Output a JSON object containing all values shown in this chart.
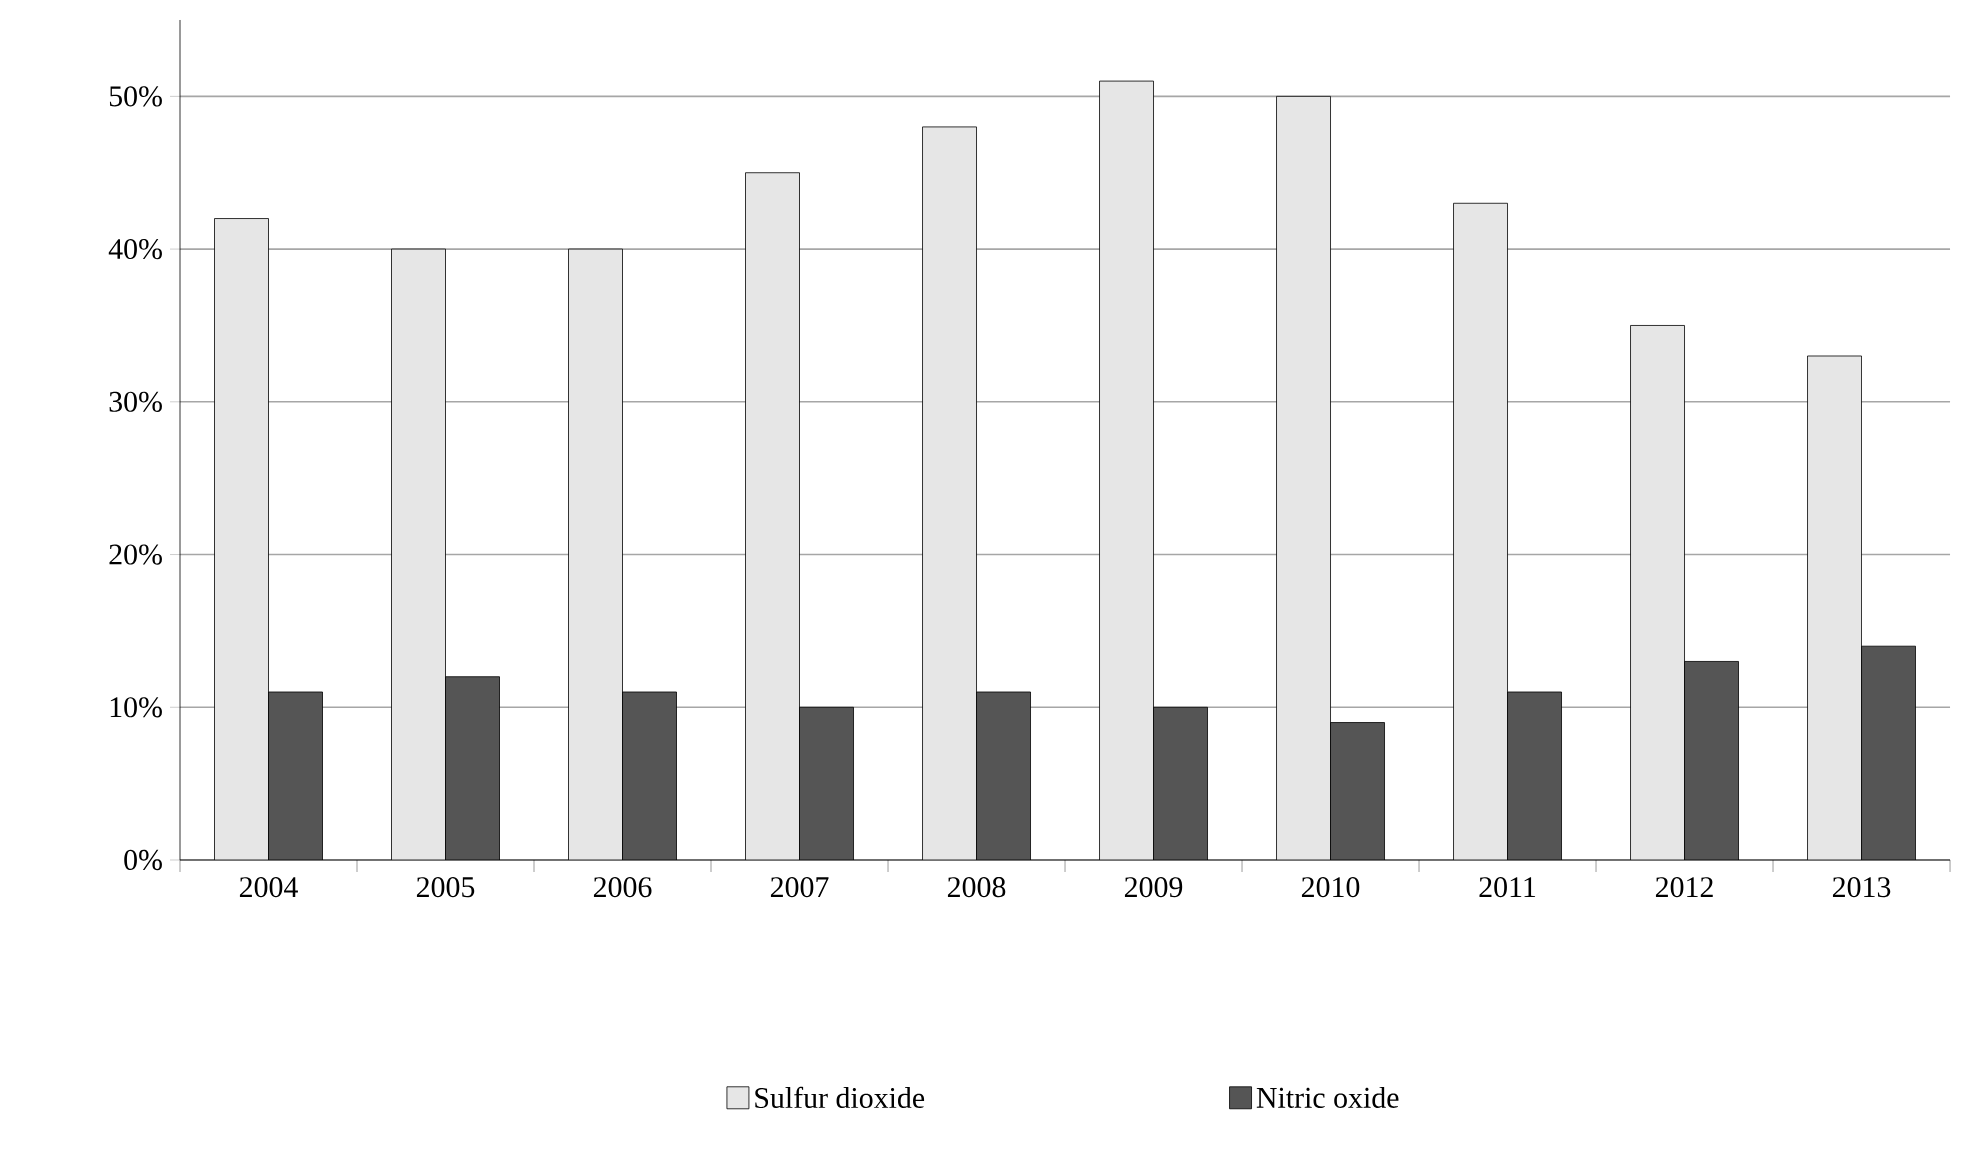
{
  "chart_data": {
    "type": "bar",
    "categories": [
      "2004",
      "2005",
      "2006",
      "2007",
      "2008",
      "2009",
      "2010",
      "2011",
      "2012",
      "2013"
    ],
    "series": [
      {
        "name": "Sulfur dioxide",
        "color": "#e6e6e6",
        "values": [
          42,
          40,
          40,
          45,
          48,
          51,
          50,
          43,
          35,
          33
        ]
      },
      {
        "name": "Nitric oxide",
        "color": "#555555",
        "values": [
          11,
          12,
          11,
          10,
          11,
          10,
          9,
          11,
          13,
          14
        ]
      }
    ],
    "ylim": [
      0,
      55
    ],
    "yticks": [
      {
        "value": 0,
        "label": "0%"
      },
      {
        "value": 10,
        "label": "10%"
      },
      {
        "value": 20,
        "label": "20%"
      },
      {
        "value": 30,
        "label": "30%"
      },
      {
        "value": 40,
        "label": "40%"
      },
      {
        "value": 50,
        "label": "50%"
      }
    ],
    "grid": "y",
    "legend": "bottom"
  }
}
